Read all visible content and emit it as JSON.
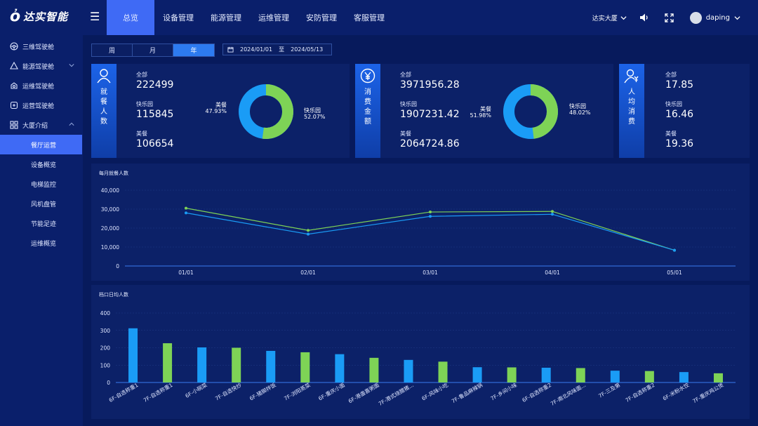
{
  "app": {
    "logo_text": "达实智能"
  },
  "nav": {
    "tabs": [
      {
        "label": "总览",
        "active": true
      },
      {
        "label": "设备管理"
      },
      {
        "label": "能源管理"
      },
      {
        "label": "运维管理"
      },
      {
        "label": "安防管理"
      },
      {
        "label": "客服管理"
      }
    ],
    "building": "达实大厦",
    "user": "daping"
  },
  "sidebar": {
    "items": [
      {
        "label": "三维驾驶舱",
        "icon": "steering-icon"
      },
      {
        "label": "能源驾驶舱",
        "icon": "recycle-icon"
      },
      {
        "label": "运维驾驶舱",
        "icon": "gear-icon"
      },
      {
        "label": "运营驾驶舱",
        "icon": "display-icon"
      },
      {
        "label": "大厦介绍",
        "icon": "grid-icon"
      }
    ],
    "subitems": [
      {
        "label": "餐厅运营",
        "active": true
      },
      {
        "label": "设备概览"
      },
      {
        "label": "电梯监控"
      },
      {
        "label": "风机盘管"
      },
      {
        "label": "节能足迹"
      },
      {
        "label": "运维概览"
      }
    ]
  },
  "filters": {
    "periods": [
      "周",
      "月",
      "年"
    ],
    "active_period": "年",
    "date_from": "2024/01/01",
    "date_sep": "至",
    "date_to": "2024/05/13"
  },
  "cards": [
    {
      "title": "就餐人数",
      "rows": [
        {
          "label": "全部",
          "value": "222499"
        },
        {
          "label": "快乐园",
          "value": "115845"
        },
        {
          "label": "美餐",
          "value": "106654"
        }
      ],
      "donut": {
        "left_name": "美餐",
        "left_pct": "47.93%",
        "right_name": "快乐园",
        "right_pct": "52.07%",
        "green_share": 52.07
      }
    },
    {
      "title": "消费金额",
      "rows": [
        {
          "label": "全部",
          "value": "3971956.28"
        },
        {
          "label": "快乐园",
          "value": "1907231.42"
        },
        {
          "label": "美餐",
          "value": "2064724.86"
        }
      ],
      "donut": {
        "left_name": "美餐",
        "left_pct": "51.98%",
        "right_name": "快乐园",
        "right_pct": "48.02%",
        "green_share": 48.02
      }
    },
    {
      "title": "人均消费",
      "rows": [
        {
          "label": "全部",
          "value": "17.85"
        },
        {
          "label": "快乐园",
          "value": "16.46"
        },
        {
          "label": "美餐",
          "value": "19.36"
        }
      ]
    }
  ],
  "colors": {
    "green": "#7ed356",
    "blue": "#1a9cf6",
    "accent": "#3f6af5"
  },
  "chart_data": [
    {
      "type": "line",
      "title": "每月就餐人数",
      "categories": [
        "01/01",
        "02/01",
        "03/01",
        "04/01",
        "05/01"
      ],
      "series": [
        {
          "values": [
            30500,
            18800,
            28500,
            28800,
            8300
          ]
        },
        {
          "values": [
            28000,
            16800,
            26200,
            27300,
            8300
          ]
        }
      ],
      "yticks": [
        "40,000",
        "30,000",
        "20,000",
        "10,000",
        "0"
      ],
      "ylim": [
        0,
        40000
      ],
      "grid": true
    },
    {
      "type": "bar",
      "title": "档口日均人数",
      "categories": [
        "6F-自选称重1",
        "7F-自选称重1",
        "6F-小碗菜",
        "7F-自选快炒",
        "6F-猪脚拌饭",
        "7F-浏阳蒸菜",
        "6F-重庆小面",
        "6F-港盏喜粥面",
        "7F-港式烧腊猪...",
        "6F-风味小吃",
        "7F-鲁品麻辣锅",
        "7F-乡间小味",
        "6F-自选称重2",
        "7F-南北风味面...",
        "7F-三及第",
        "7F-自选称重2",
        "6F-米粉水饺",
        "7F-重庆鸡公煲"
      ],
      "values": [
        312,
        226,
        202,
        200,
        182,
        174,
        163,
        142,
        130,
        120,
        88,
        87,
        85,
        83,
        68,
        66,
        60,
        53
      ],
      "yticks": [
        "400",
        "300",
        "200",
        "100",
        "0"
      ],
      "ylim": [
        0,
        400
      ],
      "grid": true
    }
  ]
}
